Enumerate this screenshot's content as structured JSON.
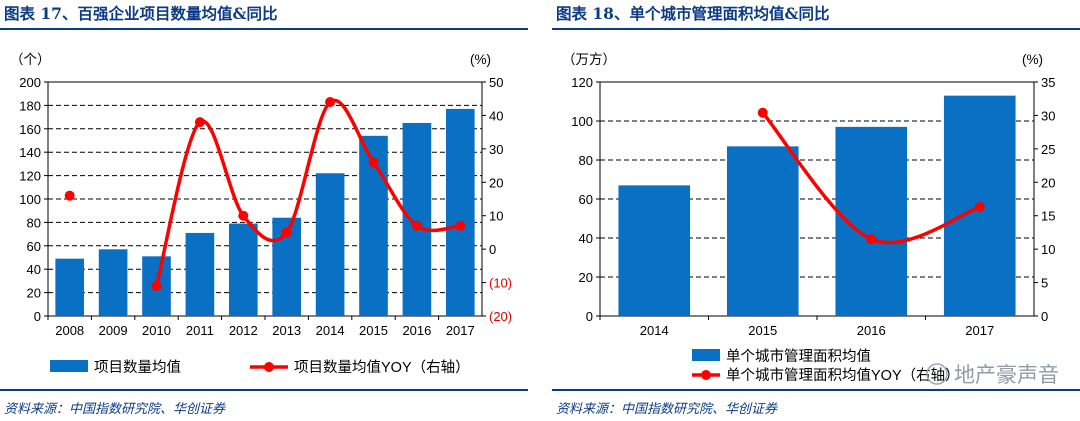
{
  "panels": [
    {
      "title": "图表 17、百强企业项目数量均值&同比",
      "source": "资料来源：中国指数研究院、华创证券",
      "left_unit": "（个）",
      "right_unit": "(%)",
      "chart_data": {
        "type": "bar",
        "categories": [
          "2008",
          "2009",
          "2010",
          "2011",
          "2012",
          "2013",
          "2014",
          "2015",
          "2016",
          "2017"
        ],
        "series": [
          {
            "name": "项目数量均值",
            "type": "bar",
            "axis": "left",
            "values": [
              49,
              57,
              51,
              71,
              79,
              84,
              122,
              154,
              165,
              177
            ]
          },
          {
            "name": "项目数量均值YOY（右轴）",
            "type": "line",
            "axis": "right",
            "values": [
              16,
              null,
              -11,
              38,
              10,
              5,
              44,
              26,
              7,
              7
            ]
          }
        ],
        "ylim_left": [
          0,
          200
        ],
        "yticks_left": [
          0,
          20,
          40,
          60,
          80,
          100,
          120,
          140,
          160,
          180,
          200
        ],
        "ylim_right": [
          -20,
          50
        ],
        "yticks_right": [
          -20,
          -10,
          0,
          10,
          20,
          30,
          40,
          50
        ],
        "ytick_labels_right": [
          "(20)",
          "(10)",
          "0",
          "10",
          "20",
          "30",
          "40",
          "50"
        ],
        "grid": "dashed horizontal",
        "legend": "bottom",
        "colors": {
          "bar": "#0a70c4",
          "line": "#ff0000",
          "negative_tick": "#e00000"
        }
      }
    },
    {
      "title": "图表 18、单个城市管理面积均值&同比",
      "source": "资料来源：中国指数研究院、华创证券",
      "left_unit": "（万方）",
      "right_unit": "(%)",
      "watermark": "地产豪声音",
      "chart_data": {
        "type": "bar",
        "categories": [
          "2014",
          "2015",
          "2016",
          "2017"
        ],
        "series": [
          {
            "name": "单个城市管理面积均值",
            "type": "bar",
            "axis": "left",
            "values": [
              67,
              87,
              97,
              113
            ]
          },
          {
            "name": "单个城市管理面积均值YOY（右轴）",
            "type": "line",
            "axis": "right",
            "values": [
              null,
              30.4,
              11.5,
              16.3
            ]
          }
        ],
        "ylim_left": [
          0,
          120
        ],
        "yticks_left": [
          0,
          20,
          40,
          60,
          80,
          100,
          120
        ],
        "ylim_right": [
          0,
          35
        ],
        "yticks_right": [
          0,
          5,
          10,
          15,
          20,
          25,
          30,
          35
        ],
        "ytick_labels_right": [
          "0",
          "5",
          "10",
          "15",
          "20",
          "25",
          "30",
          "35"
        ],
        "grid": "dashed horizontal",
        "legend": "bottom",
        "colors": {
          "bar": "#0a70c4",
          "line": "#ff0000",
          "negative_tick": "#e00000"
        }
      }
    }
  ]
}
